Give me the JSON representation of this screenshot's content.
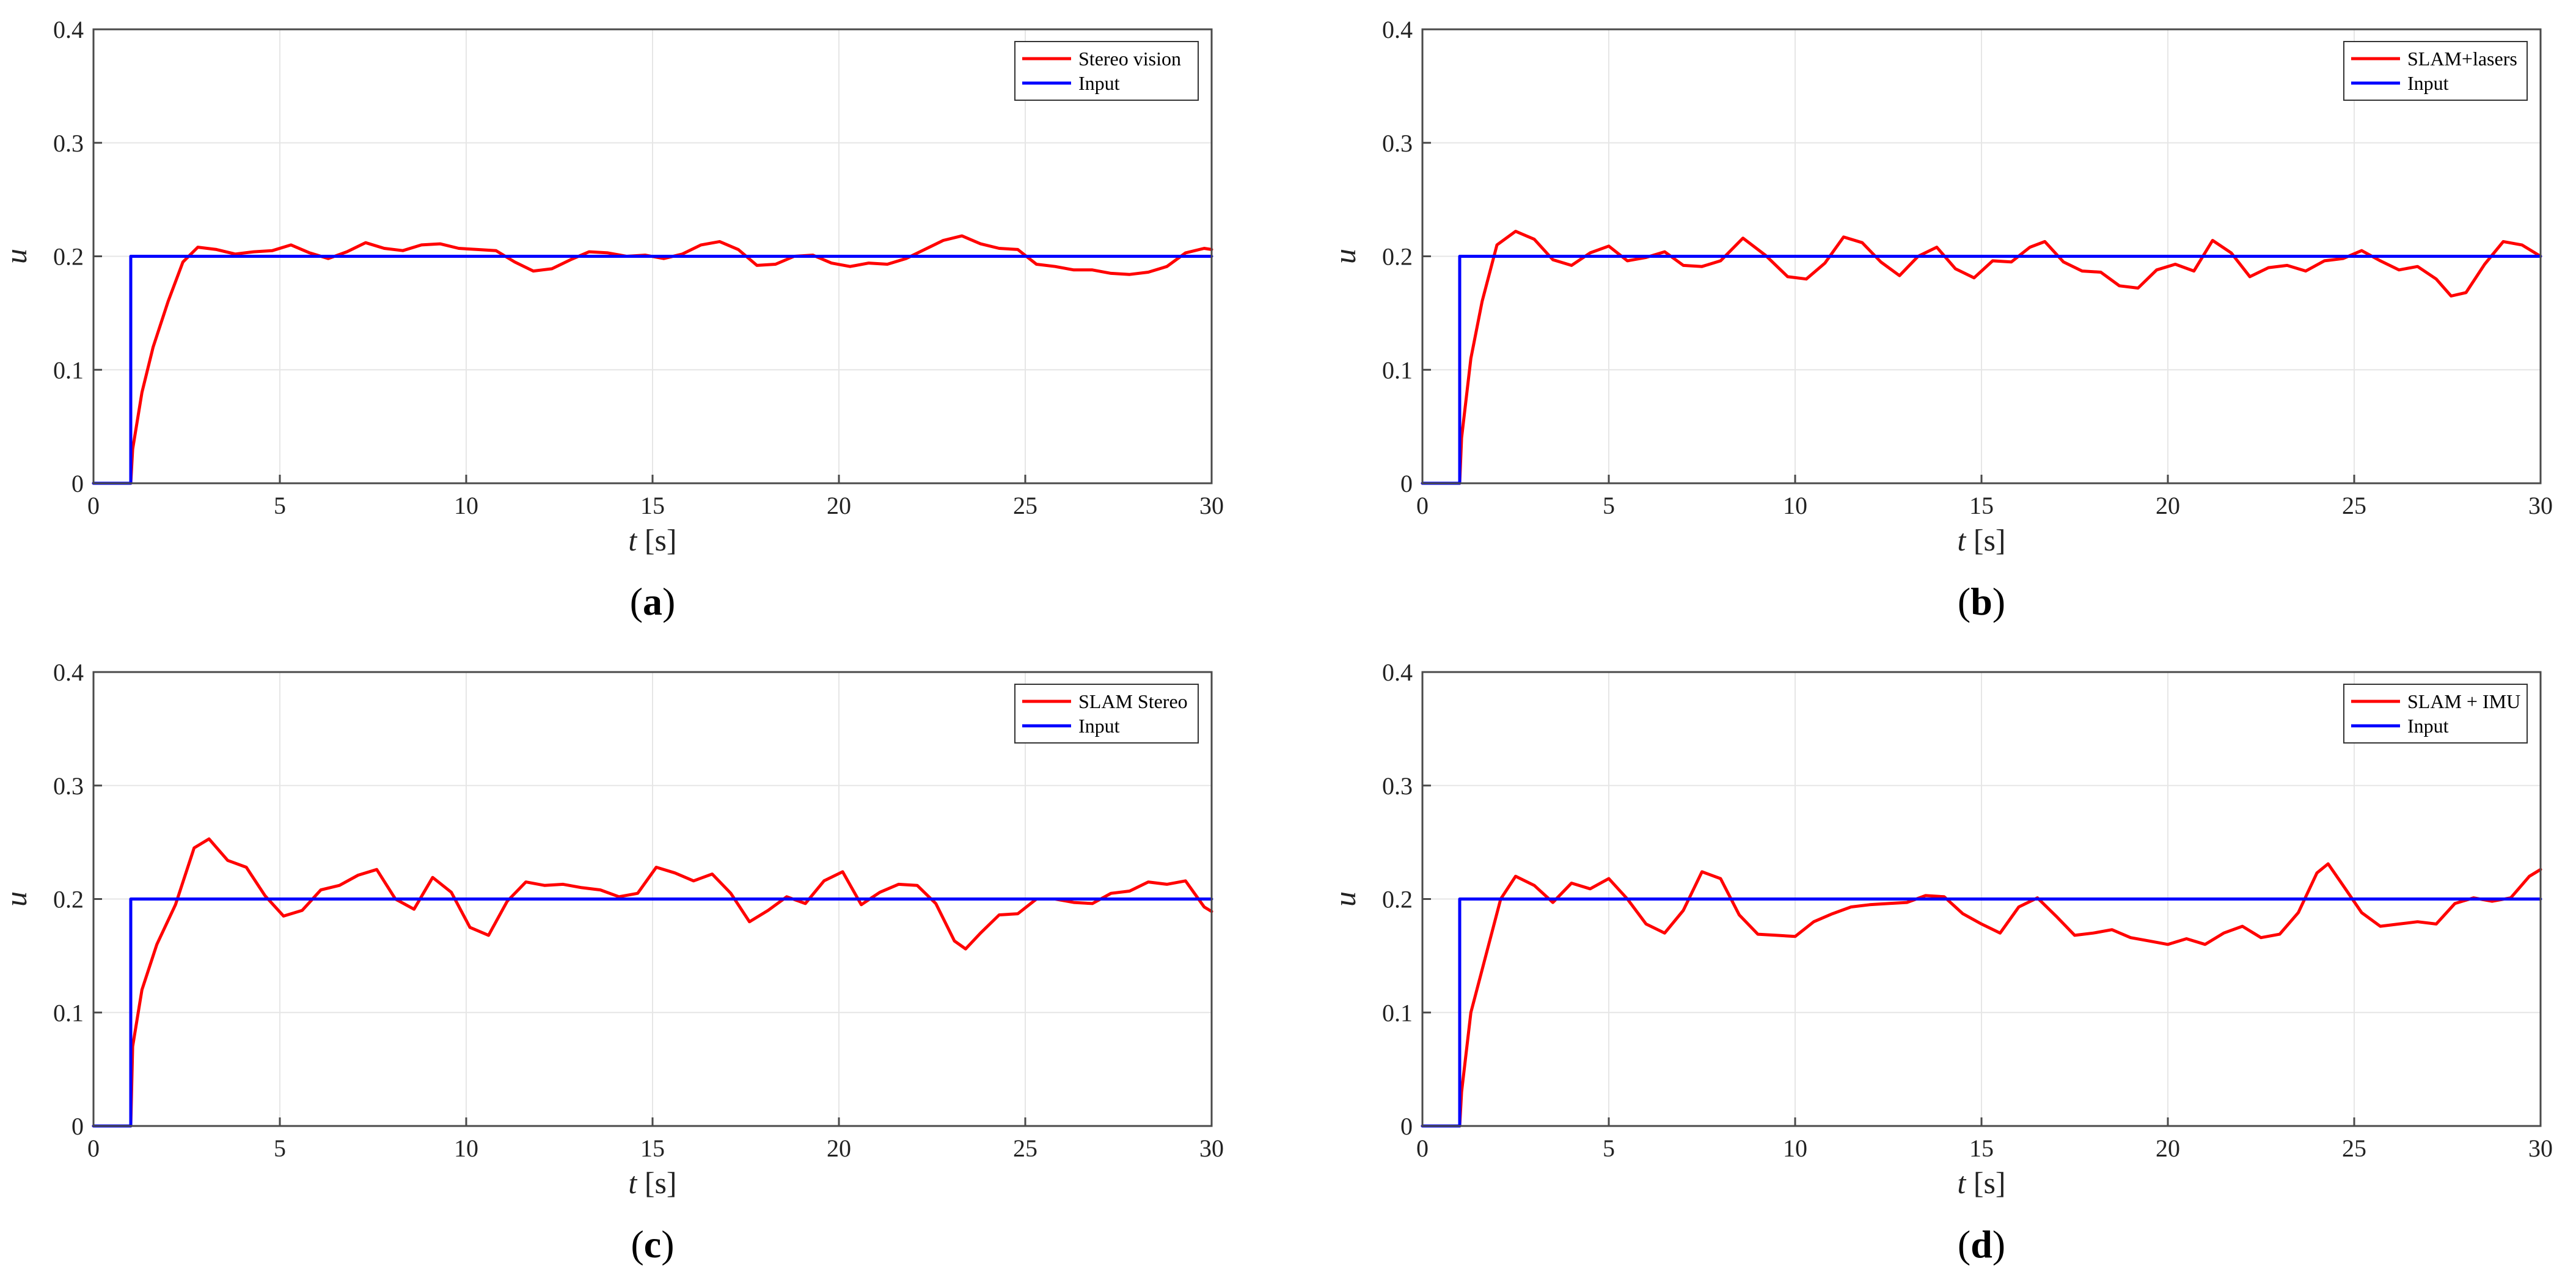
{
  "chart_data": [
    {
      "type": "line",
      "panel": "a",
      "panel_label": "(a)",
      "xlabel": "t [s]",
      "ylabel": "u",
      "xlim": [
        0,
        30
      ],
      "ylim": [
        0,
        0.4
      ],
      "xticks": [
        0,
        5,
        10,
        15,
        20,
        25,
        30
      ],
      "yticks": [
        0,
        0.1,
        0.2,
        0.3,
        0.4
      ],
      "xtick_labels": [
        "0",
        "5",
        "10",
        "15",
        "20",
        "25",
        "30"
      ],
      "ytick_labels": [
        "0",
        "0.1",
        "0.2",
        "0.3",
        "0.4"
      ],
      "grid": true,
      "legend_position": "top-right",
      "series": [
        {
          "name": "Stereo vision",
          "color": "#ff0000",
          "x": [
            0,
            1,
            1.05,
            1.3,
            1.6,
            2.0,
            2.4,
            2.8,
            3.3,
            3.8,
            4.3,
            4.8,
            5.3,
            5.8,
            6.3,
            6.8,
            7.3,
            7.8,
            8.3,
            8.8,
            9.3,
            9.8,
            10.3,
            10.8,
            11.3,
            11.8,
            12.3,
            12.8,
            13.3,
            13.8,
            14.3,
            14.8,
            15.3,
            15.8,
            16.3,
            16.8,
            17.3,
            17.8,
            18.3,
            18.8,
            19.3,
            19.8,
            20.3,
            20.8,
            21.3,
            21.8,
            22.3,
            22.8,
            23.3,
            23.8,
            24.3,
            24.8,
            25.3,
            25.8,
            26.3,
            26.8,
            27.3,
            27.8,
            28.3,
            28.8,
            29.3,
            29.8,
            30
          ],
          "y": [
            0,
            0,
            0.03,
            0.08,
            0.12,
            0.16,
            0.195,
            0.208,
            0.206,
            0.202,
            0.204,
            0.205,
            0.21,
            0.203,
            0.198,
            0.204,
            0.212,
            0.207,
            0.205,
            0.21,
            0.211,
            0.207,
            0.206,
            0.205,
            0.195,
            0.187,
            0.189,
            0.197,
            0.204,
            0.203,
            0.2,
            0.201,
            0.198,
            0.202,
            0.21,
            0.213,
            0.206,
            0.192,
            0.193,
            0.2,
            0.201,
            0.194,
            0.191,
            0.194,
            0.193,
            0.198,
            0.206,
            0.214,
            0.218,
            0.211,
            0.207,
            0.206,
            0.193,
            0.191,
            0.188,
            0.188,
            0.185,
            0.184,
            0.186,
            0.191,
            0.203,
            0.207,
            0.206
          ]
        },
        {
          "name": "Input",
          "color": "#0000ff",
          "x": [
            0,
            1,
            1,
            30
          ],
          "y": [
            0,
            0,
            0.2,
            0.2
          ]
        }
      ]
    },
    {
      "type": "line",
      "panel": "b",
      "panel_label": "(b)",
      "xlabel": "t [s]",
      "ylabel": "u",
      "xlim": [
        0,
        30
      ],
      "ylim": [
        0,
        0.4
      ],
      "xticks": [
        0,
        5,
        10,
        15,
        20,
        25,
        30
      ],
      "yticks": [
        0,
        0.1,
        0.2,
        0.3,
        0.4
      ],
      "xtick_labels": [
        "0",
        "5",
        "10",
        "15",
        "20",
        "25",
        "30"
      ],
      "ytick_labels": [
        "0",
        "0.1",
        "0.2",
        "0.3",
        "0.4"
      ],
      "grid": true,
      "legend_position": "top-right",
      "series": [
        {
          "name": "SLAM+lasers",
          "color": "#ff0000",
          "x": [
            0,
            1,
            1.05,
            1.3,
            1.6,
            2.0,
            2.5,
            3.0,
            3.5,
            4.0,
            4.5,
            5.0,
            5.5,
            6.0,
            6.5,
            7.0,
            7.5,
            8.0,
            8.6,
            9.2,
            9.8,
            10.3,
            10.8,
            11.3,
            11.8,
            12.3,
            12.8,
            13.3,
            13.8,
            14.3,
            14.8,
            15.3,
            15.8,
            16.3,
            16.7,
            17.2,
            17.7,
            18.2,
            18.7,
            19.2,
            19.7,
            20.2,
            20.7,
            21.2,
            21.7,
            22.2,
            22.7,
            23.2,
            23.7,
            24.2,
            24.7,
            25.2,
            25.7,
            26.2,
            26.7,
            27.2,
            27.6,
            28.0,
            28.5,
            29.0,
            29.5,
            30
          ],
          "y": [
            0,
            0,
            0.04,
            0.11,
            0.16,
            0.21,
            0.222,
            0.215,
            0.197,
            0.192,
            0.203,
            0.209,
            0.196,
            0.199,
            0.204,
            0.192,
            0.191,
            0.196,
            0.216,
            0.201,
            0.182,
            0.18,
            0.194,
            0.217,
            0.212,
            0.195,
            0.183,
            0.2,
            0.208,
            0.189,
            0.181,
            0.196,
            0.195,
            0.208,
            0.213,
            0.195,
            0.187,
            0.186,
            0.174,
            0.172,
            0.188,
            0.193,
            0.187,
            0.214,
            0.203,
            0.182,
            0.19,
            0.192,
            0.187,
            0.196,
            0.198,
            0.205,
            0.196,
            0.188,
            0.191,
            0.18,
            0.165,
            0.168,
            0.193,
            0.213,
            0.21,
            0.2
          ]
        },
        {
          "name": "Input",
          "color": "#0000ff",
          "x": [
            0,
            1,
            1,
            30
          ],
          "y": [
            0,
            0,
            0.2,
            0.2
          ]
        }
      ]
    },
    {
      "type": "line",
      "panel": "c",
      "panel_label": "(c)",
      "xlabel": "t [s]",
      "ylabel": "u",
      "xlim": [
        0,
        30
      ],
      "ylim": [
        0,
        0.4
      ],
      "xticks": [
        0,
        5,
        10,
        15,
        20,
        25,
        30
      ],
      "yticks": [
        0,
        0.1,
        0.2,
        0.3,
        0.4
      ],
      "xtick_labels": [
        "0",
        "5",
        "10",
        "15",
        "20",
        "25",
        "30"
      ],
      "ytick_labels": [
        "0",
        "0.1",
        "0.2",
        "0.3",
        "0.4"
      ],
      "grid": true,
      "legend_position": "top-right",
      "series": [
        {
          "name": "SLAM Stereo",
          "color": "#ff0000",
          "x": [
            0,
            1,
            1.05,
            1.3,
            1.7,
            2.2,
            2.7,
            3.1,
            3.6,
            4.1,
            4.6,
            5.1,
            5.6,
            6.1,
            6.6,
            7.1,
            7.6,
            8.1,
            8.6,
            9.1,
            9.6,
            10.1,
            10.6,
            11.1,
            11.6,
            12.1,
            12.6,
            13.1,
            13.6,
            14.1,
            14.6,
            15.1,
            15.6,
            16.1,
            16.6,
            17.1,
            17.6,
            18.1,
            18.6,
            19.1,
            19.6,
            20.1,
            20.6,
            21.1,
            21.6,
            22.1,
            22.6,
            23.1,
            23.4,
            23.8,
            24.3,
            24.8,
            25.3,
            25.8,
            26.3,
            26.8,
            27.3,
            27.8,
            28.3,
            28.8,
            29.3,
            29.8,
            30
          ],
          "y": [
            0,
            0,
            0.07,
            0.12,
            0.16,
            0.195,
            0.245,
            0.253,
            0.234,
            0.228,
            0.203,
            0.185,
            0.19,
            0.208,
            0.212,
            0.221,
            0.226,
            0.2,
            0.191,
            0.219,
            0.206,
            0.175,
            0.168,
            0.198,
            0.215,
            0.212,
            0.213,
            0.21,
            0.208,
            0.202,
            0.205,
            0.228,
            0.223,
            0.216,
            0.222,
            0.205,
            0.18,
            0.19,
            0.202,
            0.196,
            0.216,
            0.224,
            0.195,
            0.206,
            0.213,
            0.212,
            0.196,
            0.163,
            0.156,
            0.17,
            0.186,
            0.187,
            0.2,
            0.2,
            0.197,
            0.196,
            0.205,
            0.207,
            0.215,
            0.213,
            0.216,
            0.193,
            0.189
          ]
        },
        {
          "name": "Input",
          "color": "#0000ff",
          "x": [
            0,
            1,
            1,
            30
          ],
          "y": [
            0,
            0,
            0.2,
            0.2
          ]
        }
      ]
    },
    {
      "type": "line",
      "panel": "d",
      "panel_label": "(d)",
      "xlabel": "t [s]",
      "ylabel": "u",
      "xlim": [
        0,
        30
      ],
      "ylim": [
        0,
        0.4
      ],
      "xticks": [
        0,
        5,
        10,
        15,
        20,
        25,
        30
      ],
      "yticks": [
        0,
        0.1,
        0.2,
        0.3,
        0.4
      ],
      "xtick_labels": [
        "0",
        "5",
        "10",
        "15",
        "20",
        "25",
        "30"
      ],
      "ytick_labels": [
        "0",
        "0.1",
        "0.2",
        "0.3",
        "0.4"
      ],
      "grid": true,
      "legend_position": "top-right",
      "series": [
        {
          "name": "SLAM + IMU",
          "color": "#ff0000",
          "x": [
            0,
            1,
            1.05,
            1.3,
            1.7,
            2.1,
            2.5,
            3.0,
            3.5,
            4.0,
            4.5,
            5.0,
            5.5,
            6.0,
            6.5,
            7.0,
            7.5,
            8.0,
            8.5,
            9.0,
            9.5,
            10.0,
            10.5,
            11.0,
            11.5,
            12.0,
            12.5,
            13.0,
            13.5,
            14.0,
            14.5,
            15.0,
            15.5,
            16.0,
            16.5,
            17.0,
            17.5,
            18.0,
            18.5,
            19.0,
            19.5,
            20.0,
            20.5,
            21.0,
            21.5,
            22.0,
            22.5,
            23.0,
            23.5,
            24.0,
            24.3,
            24.7,
            25.2,
            25.7,
            26.2,
            26.7,
            27.2,
            27.7,
            28.2,
            28.7,
            29.2,
            29.7,
            30
          ],
          "y": [
            0,
            0,
            0.03,
            0.1,
            0.15,
            0.2,
            0.22,
            0.212,
            0.197,
            0.214,
            0.209,
            0.218,
            0.2,
            0.178,
            0.17,
            0.19,
            0.224,
            0.218,
            0.186,
            0.169,
            0.168,
            0.167,
            0.18,
            0.187,
            0.193,
            0.195,
            0.196,
            0.197,
            0.203,
            0.202,
            0.187,
            0.178,
            0.17,
            0.193,
            0.201,
            0.185,
            0.168,
            0.17,
            0.173,
            0.166,
            0.163,
            0.16,
            0.165,
            0.16,
            0.17,
            0.176,
            0.166,
            0.169,
            0.188,
            0.223,
            0.231,
            0.212,
            0.188,
            0.176,
            0.178,
            0.18,
            0.178,
            0.196,
            0.201,
            0.198,
            0.201,
            0.22,
            0.226
          ]
        },
        {
          "name": "Input",
          "color": "#0000ff",
          "x": [
            0,
            1,
            1,
            30
          ],
          "y": [
            0,
            0,
            0.2,
            0.2
          ]
        }
      ]
    }
  ]
}
